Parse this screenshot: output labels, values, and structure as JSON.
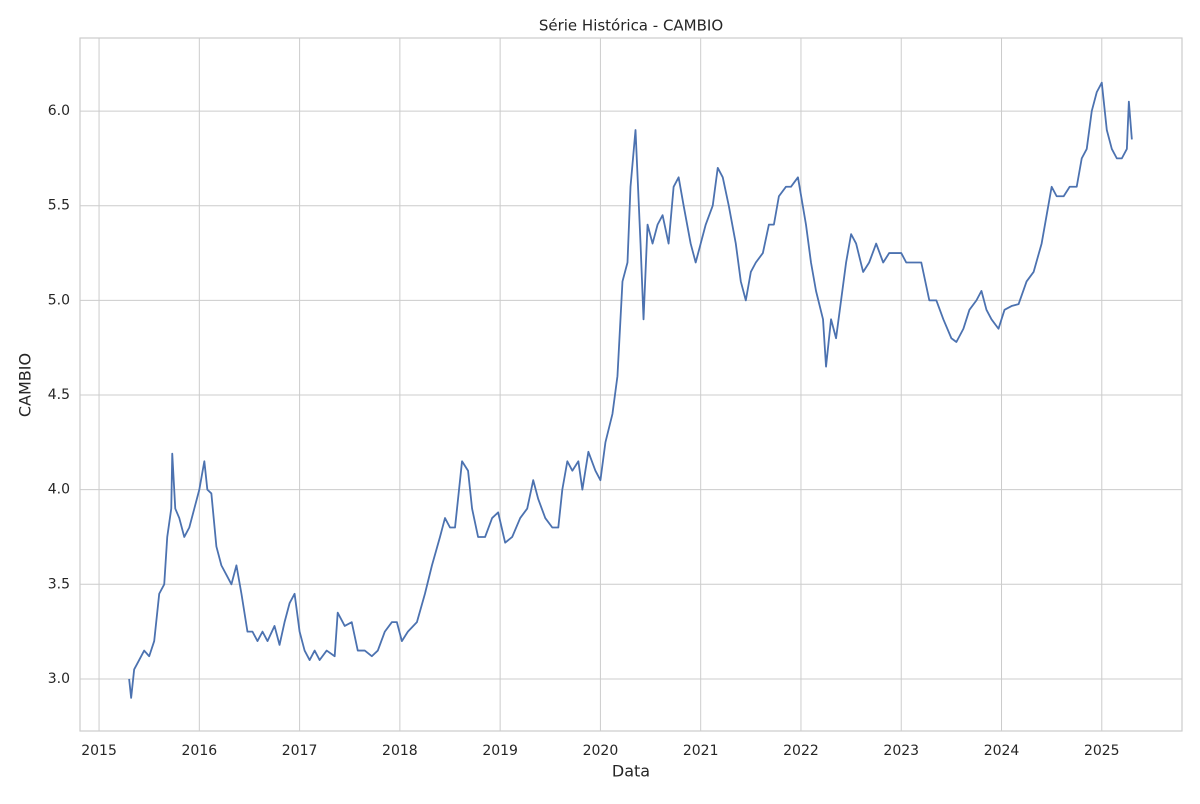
{
  "chart_data": {
    "type": "line",
    "title": "Série Histórica - CAMBIO",
    "x_label": "Data",
    "y_label": "CAMBIO",
    "xlim": [
      2014.81,
      2025.8
    ],
    "xticks": [
      2015,
      2016,
      2017,
      2018,
      2019,
      2020,
      2021,
      2022,
      2023,
      2024,
      2025
    ],
    "ylim": [
      2.725,
      6.386
    ],
    "yticks": [
      {
        "value": 3,
        "label": "3.0"
      },
      3.5,
      {
        "value": 4,
        "label": "4.0"
      },
      4.5,
      {
        "value": 5,
        "label": "5.0"
      },
      5.5,
      {
        "value": 6,
        "label": "6.0"
      }
    ],
    "grid": true,
    "x": [
      2015.3,
      2015.32,
      2015.35,
      2015.4,
      2015.45,
      2015.5,
      2015.55,
      2015.6,
      2015.65,
      2015.68,
      2015.72,
      2015.73,
      2015.76,
      2015.8,
      2015.85,
      2015.9,
      2015.95,
      2016.0,
      2016.05,
      2016.08,
      2016.12,
      2016.17,
      2016.22,
      2016.27,
      2016.32,
      2016.37,
      2016.42,
      2016.48,
      2016.53,
      2016.58,
      2016.63,
      2016.68,
      2016.75,
      2016.8,
      2016.85,
      2016.9,
      2016.95,
      2017.0,
      2017.05,
      2017.1,
      2017.15,
      2017.2,
      2017.27,
      2017.35,
      2017.38,
      2017.45,
      2017.52,
      2017.58,
      2017.65,
      2017.72,
      2017.78,
      2017.85,
      2017.92,
      2017.97,
      2018.02,
      2018.08,
      2018.17,
      2018.25,
      2018.32,
      2018.4,
      2018.45,
      2018.5,
      2018.55,
      2018.62,
      2018.68,
      2018.72,
      2018.78,
      2018.85,
      2018.92,
      2018.98,
      2019.05,
      2019.12,
      2019.2,
      2019.27,
      2019.33,
      2019.38,
      2019.45,
      2019.52,
      2019.58,
      2019.62,
      2019.67,
      2019.72,
      2019.78,
      2019.82,
      2019.88,
      2019.95,
      2020.0,
      2020.05,
      2020.12,
      2020.17,
      2020.22,
      2020.27,
      2020.3,
      2020.35,
      2020.4,
      2020.43,
      2020.47,
      2020.52,
      2020.57,
      2020.62,
      2020.68,
      2020.73,
      2020.78,
      2020.83,
      2020.9,
      2020.95,
      2021.0,
      2021.05,
      2021.12,
      2021.17,
      2021.22,
      2021.28,
      2021.35,
      2021.4,
      2021.45,
      2021.5,
      2021.55,
      2021.62,
      2021.68,
      2021.73,
      2021.78,
      2021.85,
      2021.9,
      2021.97,
      2022.05,
      2022.1,
      2022.15,
      2022.22,
      2022.25,
      2022.3,
      2022.35,
      2022.4,
      2022.45,
      2022.5,
      2022.55,
      2022.62,
      2022.68,
      2022.75,
      2022.82,
      2022.88,
      2022.95,
      2023.0,
      2023.05,
      2023.1,
      2023.15,
      2023.2,
      2023.28,
      2023.35,
      2023.42,
      2023.5,
      2023.55,
      2023.62,
      2023.68,
      2023.75,
      2023.8,
      2023.85,
      2023.9,
      2023.97,
      2024.03,
      2024.1,
      2024.17,
      2024.25,
      2024.32,
      2024.4,
      2024.45,
      2024.5,
      2024.55,
      2024.62,
      2024.68,
      2024.75,
      2024.8,
      2024.85,
      2024.9,
      2024.95,
      2025.0,
      2025.05,
      2025.1,
      2025.15,
      2025.2,
      2025.25,
      2025.27,
      2025.3
    ],
    "series": [
      {
        "name": "CAMBIO",
        "color": "#4c72b0",
        "values": [
          3.0,
          2.9,
          3.05,
          3.1,
          3.15,
          3.12,
          3.2,
          3.45,
          3.5,
          3.75,
          3.9,
          4.19,
          3.9,
          3.85,
          3.75,
          3.8,
          3.9,
          4.0,
          4.15,
          4.0,
          3.98,
          3.7,
          3.6,
          3.55,
          3.5,
          3.6,
          3.45,
          3.25,
          3.25,
          3.2,
          3.25,
          3.2,
          3.28,
          3.18,
          3.3,
          3.4,
          3.45,
          3.25,
          3.15,
          3.1,
          3.15,
          3.1,
          3.15,
          3.12,
          3.35,
          3.28,
          3.3,
          3.15,
          3.15,
          3.12,
          3.15,
          3.25,
          3.3,
          3.3,
          3.2,
          3.25,
          3.3,
          3.45,
          3.6,
          3.75,
          3.85,
          3.8,
          3.8,
          4.15,
          4.1,
          3.9,
          3.75,
          3.75,
          3.85,
          3.88,
          3.72,
          3.75,
          3.85,
          3.9,
          4.05,
          3.95,
          3.85,
          3.8,
          3.8,
          4.0,
          4.15,
          4.1,
          4.15,
          4.0,
          4.2,
          4.1,
          4.05,
          4.25,
          4.4,
          4.6,
          5.1,
          5.2,
          5.6,
          5.9,
          5.3,
          4.9,
          5.4,
          5.3,
          5.4,
          5.45,
          5.3,
          5.6,
          5.65,
          5.5,
          5.3,
          5.2,
          5.3,
          5.4,
          5.5,
          5.7,
          5.65,
          5.5,
          5.3,
          5.1,
          5.0,
          5.15,
          5.2,
          5.25,
          5.4,
          5.4,
          5.55,
          5.6,
          5.6,
          5.65,
          5.4,
          5.2,
          5.05,
          4.9,
          4.65,
          4.9,
          4.8,
          5.0,
          5.2,
          5.35,
          5.3,
          5.15,
          5.2,
          5.3,
          5.2,
          5.25,
          5.25,
          5.25,
          5.2,
          5.2,
          5.2,
          5.2,
          5.0,
          5.0,
          4.9,
          4.8,
          4.78,
          4.85,
          4.95,
          5.0,
          5.05,
          4.95,
          4.9,
          4.85,
          4.95,
          4.97,
          4.98,
          5.1,
          5.15,
          5.3,
          5.45,
          5.6,
          5.55,
          5.55,
          5.6,
          5.6,
          5.75,
          5.8,
          6.0,
          6.1,
          6.15,
          5.9,
          5.8,
          5.75,
          5.75,
          5.8,
          6.05,
          5.85
        ]
      }
    ]
  }
}
